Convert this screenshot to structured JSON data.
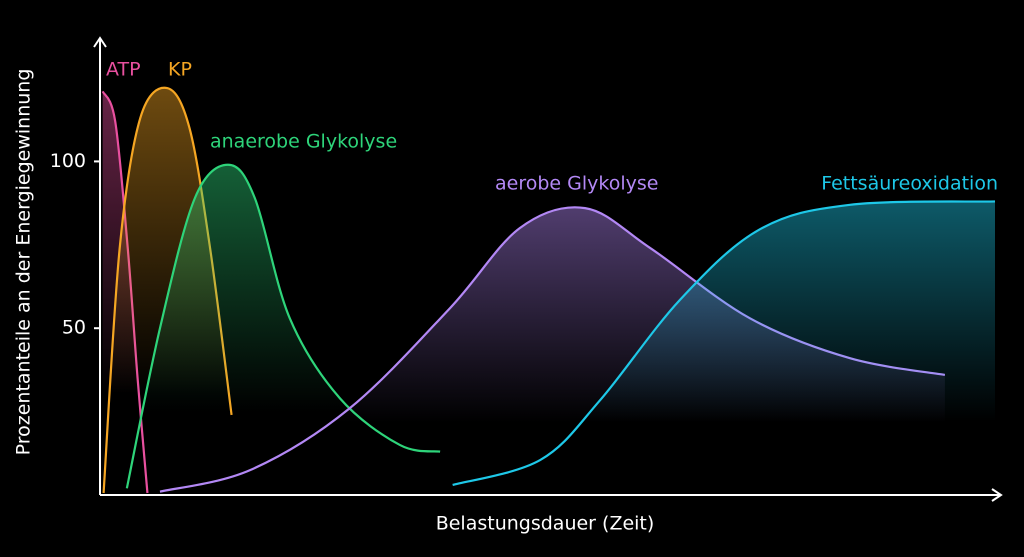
{
  "chart_data": {
    "type": "line",
    "x_label": "Belastungsdauer (Zeit)",
    "y_label": "Prozentanteile an der Energiegewinnung",
    "xlim": [
      0,
      100
    ],
    "ylim": [
      0,
      137
    ],
    "yticks": [
      50,
      100
    ],
    "series": [
      {
        "name": "ATP",
        "color": "#e8509f",
        "x": [
          0.3,
          1.7,
          3.1,
          4.2,
          5.3
        ],
        "values": [
          121,
          112,
          74,
          35,
          0.6
        ]
      },
      {
        "name": "KP",
        "color": "#f5a623",
        "x": [
          0.4,
          2.2,
          4.5,
          7.5,
          10,
          12.3,
          14.7
        ],
        "values": [
          0.6,
          74,
          113,
          122,
          110,
          74,
          24
        ]
      },
      {
        "name": "anaerobe Glykolyse",
        "color": "#2ed47a",
        "x": [
          3,
          6.7,
          10.6,
          14.3,
          17.3,
          21.2,
          26.8,
          33.5,
          38
        ],
        "values": [
          2,
          50,
          89,
          99,
          89,
          53,
          29,
          15,
          13
        ]
      },
      {
        "name": "aerobe Glykolyse",
        "color": "#b388f5",
        "x": [
          6.7,
          16.8,
          27.9,
          39.1,
          46.9,
          54.2,
          61.5,
          72.6,
          83.8,
          94.4
        ],
        "values": [
          1,
          7.5,
          26,
          56,
          80,
          86,
          74,
          53,
          41,
          36
        ]
      },
      {
        "name": "Fettsäureoxidation",
        "color": "#1ec8e8",
        "x": [
          39.4,
          49.2,
          55.9,
          64.8,
          73.7,
          83.8,
          100
        ],
        "values": [
          3,
          10.5,
          28.5,
          58.5,
          79.6,
          87,
          88
        ]
      }
    ]
  }
}
